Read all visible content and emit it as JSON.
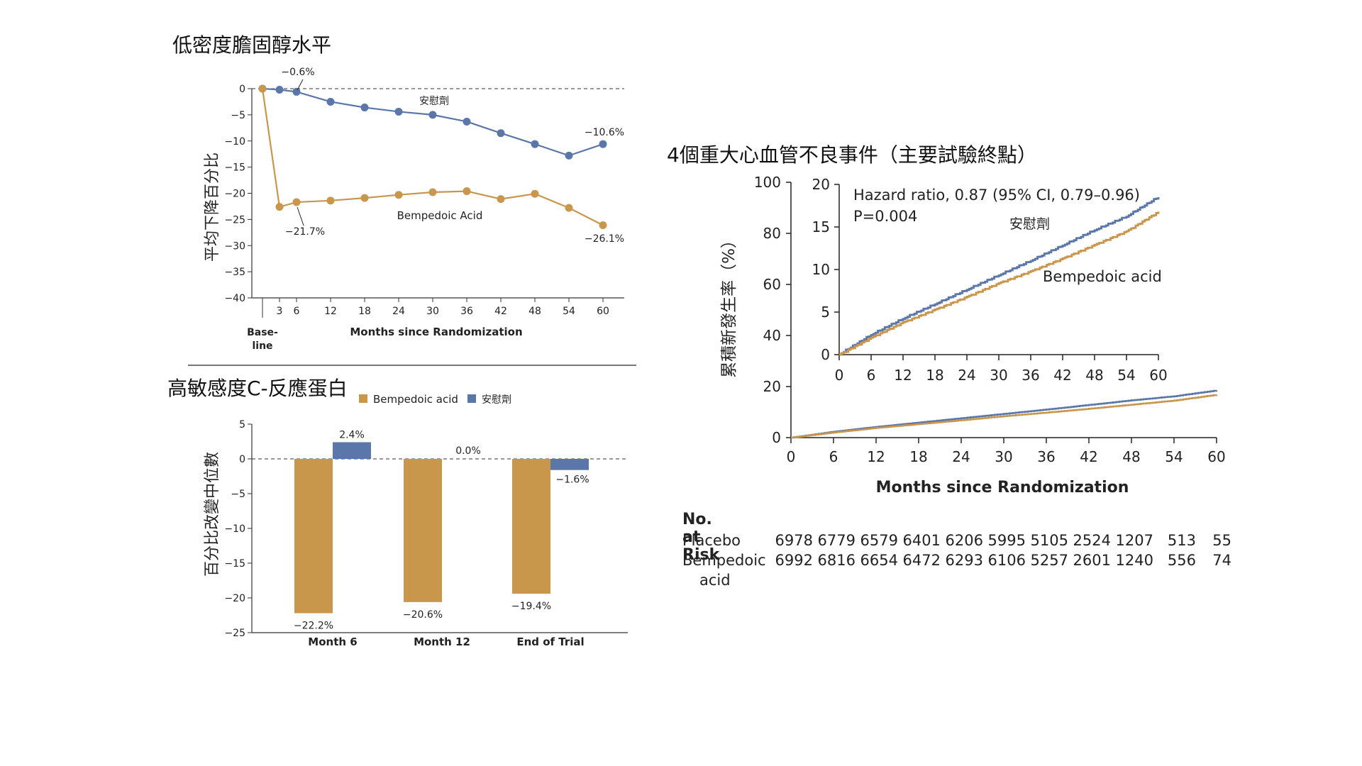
{
  "colors": {
    "bempedoic": "#C9974C",
    "placebo": "#5B76A8",
    "axis": "#333333"
  },
  "ldl": {
    "title": "低密度膽固醇水平",
    "chart_data": {
      "type": "line",
      "xlabel": "Months since Randomization",
      "ylabel": "平均下降百分比",
      "x": [
        0,
        3,
        6,
        12,
        18,
        24,
        30,
        36,
        42,
        48,
        54,
        60
      ],
      "xticks": [
        {
          "x": 0,
          "label": "Base-"
        },
        {
          "x": 3,
          "label": "3"
        },
        {
          "x": 6,
          "label": "6"
        },
        {
          "x": 12,
          "label": "12"
        },
        {
          "x": 18,
          "label": "18"
        },
        {
          "x": 24,
          "label": "24"
        },
        {
          "x": 30,
          "label": "30"
        },
        {
          "x": 36,
          "label": "36"
        },
        {
          "x": 42,
          "label": "42"
        },
        {
          "x": 48,
          "label": "48"
        },
        {
          "x": 54,
          "label": "54"
        },
        {
          "x": 60,
          "label": "60"
        }
      ],
      "baseline_label_line2": "line",
      "yticks": [
        "0",
        "−5",
        "−10",
        "−15",
        "−20",
        "−25",
        "−30",
        "−35",
        "−40"
      ],
      "ylim": [
        -40,
        0
      ],
      "series": [
        {
          "name": "安慰劑",
          "values": [
            0,
            -0.2,
            -0.6,
            -2.5,
            -3.6,
            -4.4,
            -5.0,
            -6.3,
            -8.5,
            -10.6,
            -12.8,
            -10.6
          ]
        },
        {
          "name": "Bempedoic Acid",
          "values": [
            0,
            -22.6,
            -21.7,
            -21.4,
            -20.9,
            -20.3,
            -19.8,
            -19.6,
            -21.1,
            -20.1,
            -22.8,
            -26.1
          ]
        }
      ],
      "annotations": [
        {
          "text": "−0.6%"
        },
        {
          "text": "−10.6%"
        },
        {
          "text": "−21.7%"
        },
        {
          "text": "−26.1%"
        }
      ]
    }
  },
  "crp": {
    "title": "高敏感度C-反應蛋白",
    "chart_data": {
      "type": "bar",
      "ylabel": "百分比改變中位數",
      "categories": [
        "Month 6",
        "Month 12",
        "End of Trial"
      ],
      "yticks": [
        "5",
        "0",
        "−5",
        "−10",
        "−15",
        "−20",
        "−25"
      ],
      "ylim": [
        -25,
        5
      ],
      "series": [
        {
          "name": "Bempedoic acid",
          "values": [
            -22.2,
            -20.6,
            -19.4
          ],
          "labels": [
            "−22.2%",
            "−20.6%",
            "−19.4%"
          ]
        },
        {
          "name": "安慰劑",
          "values": [
            2.4,
            0.0,
            -1.6
          ],
          "labels": [
            "2.4%",
            "0.0%",
            "−1.6%"
          ]
        }
      ]
    }
  },
  "mace": {
    "title": "4個重大心血管不良事件（主要試驗終點）",
    "chart_data": {
      "type": "line",
      "xlabel": "Months since Randomization",
      "ylabel": "累積新發生率（%）",
      "xticks": [
        "0",
        "6",
        "12",
        "18",
        "24",
        "30",
        "36",
        "42",
        "48",
        "54",
        "60"
      ],
      "yticks": [
        "0",
        "20",
        "40",
        "60",
        "80",
        "100"
      ],
      "ylim": [
        0,
        100
      ],
      "xlim": [
        0,
        60
      ],
      "x": [
        0,
        6,
        12,
        18,
        24,
        30,
        36,
        42,
        48,
        54,
        60
      ],
      "series": [
        {
          "name": "安慰劑",
          "values": [
            0,
            2.3,
            4.2,
            5.9,
            7.6,
            9.3,
            11.0,
            12.8,
            14.6,
            16.2,
            18.5
          ]
        },
        {
          "name": "Bempedoic acid",
          "values": [
            0,
            2.0,
            3.8,
            5.3,
            6.8,
            8.4,
            9.8,
            11.3,
            12.9,
            14.5,
            16.8
          ]
        }
      ],
      "inset": {
        "xticks": [
          "0",
          "6",
          "12",
          "18",
          "24",
          "30",
          "36",
          "42",
          "48",
          "54",
          "60"
        ],
        "yticks": [
          "0",
          "5",
          "10",
          "15",
          "20"
        ],
        "ylim": [
          0,
          20
        ],
        "hazard_text": "Hazard ratio, 0.87 (95% CI, 0.79–0.96)",
        "p_text": "P=0.004",
        "placebo_label": "安慰劑",
        "bempedoic_label": "Bempedoic acid"
      }
    },
    "risk": {
      "title": "No. at Risk",
      "rows": [
        {
          "name": "Placebo",
          "values": [
            "6978",
            "6779",
            "6579",
            "6401",
            "6206",
            "5995",
            "5105",
            "2524",
            "1207",
            "513",
            "55"
          ]
        },
        {
          "name": "Bempedoic",
          "name2": "acid",
          "values": [
            "6992",
            "6816",
            "6654",
            "6472",
            "6293",
            "6106",
            "5257",
            "2601",
            "1240",
            "556",
            "74"
          ]
        }
      ]
    }
  }
}
